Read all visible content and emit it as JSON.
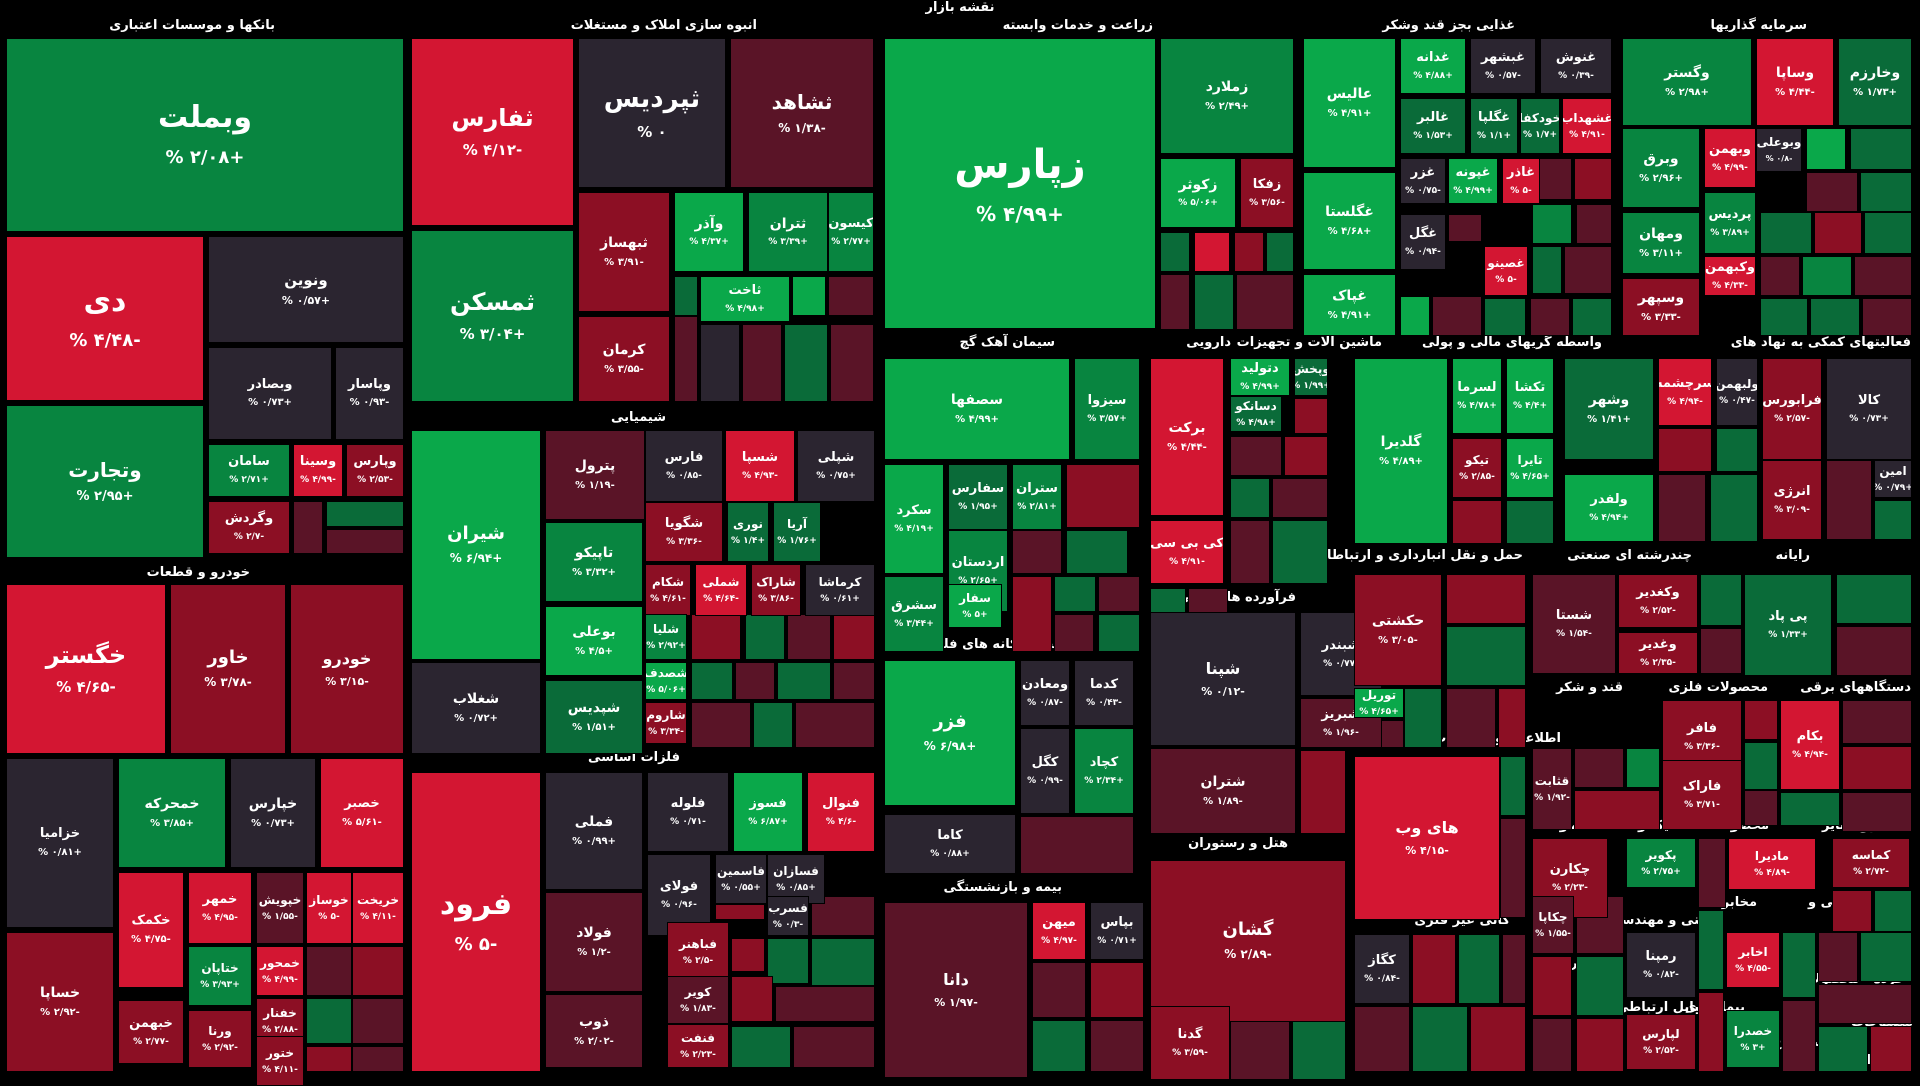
{
  "title": "نقشه بازار",
  "colors": {
    "bg": "#000000",
    "gain_strong": "#0aa84a",
    "gain": "#088540",
    "gain_mid": "#0a6b39",
    "neutral": "#2b2530",
    "loss_mid": "#5a1427",
    "loss": "#8c0f24",
    "loss_strong": "#d31632"
  },
  "sectors": [
    {
      "label": "بانکها و موسسات اعتباری"
    },
    {
      "label": "انبوه سازی املاک و مستغلات"
    },
    {
      "label": "زراعت و خدمات وابسته"
    },
    {
      "label": "غذایی بجز قند وشکر"
    },
    {
      "label": "سرمایه گذاریها"
    },
    {
      "label": "خودرو و قطعات"
    },
    {
      "label": "شیمیایی"
    },
    {
      "label": "فلزات اساسی"
    },
    {
      "label": "سیمان آهک گچ"
    },
    {
      "label": "دارویی"
    },
    {
      "label": "ماشین آلات و تجهیزات"
    },
    {
      "label": "واسطه گریهای مالی و پولی"
    },
    {
      "label": "فعالیتهای کمکی به نهاد های"
    },
    {
      "label": "فرآورده های نفتی"
    },
    {
      "label": "حمل و نقل انبارداری و ارتباطات"
    },
    {
      "label": "چندرشته ای صنعتی"
    },
    {
      "label": "رایانه"
    },
    {
      "label": "استخراج کانه های فلزی"
    },
    {
      "label": "قند و شکر"
    },
    {
      "label": "محصولات فلزی"
    },
    {
      "label": "دستگاههای برقی"
    },
    {
      "label": "اطلاعات و ارتباطات"
    },
    {
      "label": "استخراج سایر"
    },
    {
      "label": "هتل و رستوران"
    },
    {
      "label": "بیمه و بازنشستگی"
    },
    {
      "label": "لاستیک و"
    },
    {
      "label": "محصولات"
    },
    {
      "label": "محصولات"
    },
    {
      "label": "کانی غیر فلزی"
    },
    {
      "label": "فنی و مهندسی"
    },
    {
      "label": "مخابرات"
    },
    {
      "label": "کاشی و"
    },
    {
      "label": "سایر"
    },
    {
      "label": "عرضه"
    },
    {
      "label": "محصولات"
    },
    {
      "label": "خرده"
    },
    {
      "label": "وسایل ارتباطی"
    },
    {
      "label": "پیمانکاری"
    },
    {
      "label": "منسوجات"
    },
    {
      "label": "استخراج"
    },
    {
      "label": "استخراج ن"
    }
  ],
  "tiles": [
    {
      "symbol": "وبملت",
      "change": "+۲/۰۸ %",
      "color": "gain"
    },
    {
      "symbol": "دی",
      "change": "-۴/۴۸ %",
      "color": "loss_strong"
    },
    {
      "symbol": "ونوین",
      "change": "+۰/۵۷ %",
      "color": "neutral"
    },
    {
      "symbol": "وبصادر",
      "change": "+۰/۷۳ %",
      "color": "neutral"
    },
    {
      "symbol": "وپاسار",
      "change": "-۰/۹۳ %",
      "color": "neutral"
    },
    {
      "symbol": "وتجارت",
      "change": "+۲/۹۵ %",
      "color": "gain"
    },
    {
      "symbol": "سامان",
      "change": "+۲/۷۱ %",
      "color": "gain"
    },
    {
      "symbol": "وسینا",
      "change": "-۴/۹۹ %",
      "color": "loss_strong"
    },
    {
      "symbol": "وپارس",
      "change": "-۲/۵۳ %",
      "color": "loss"
    },
    {
      "symbol": "وگردش",
      "change": "-۲/۷ %",
      "color": "loss"
    },
    {
      "symbol": "ثفارس",
      "change": "-۴/۱۲ %",
      "color": "loss_strong"
    },
    {
      "symbol": "ثپردیس",
      "change": "۰ %",
      "color": "neutral"
    },
    {
      "symbol": "ثشاهد",
      "change": "-۱/۳۸ %",
      "color": "loss_mid"
    },
    {
      "symbol": "ثمسکن",
      "change": "+۳/۰۴ %",
      "color": "gain"
    },
    {
      "symbol": "ثبهساز",
      "change": "-۳/۹۱ %",
      "color": "loss"
    },
    {
      "symbol": "وآذر",
      "change": "+۴/۳۷ %",
      "color": "gain_strong"
    },
    {
      "symbol": "ثتران",
      "change": "+۳/۳۹ %",
      "color": "gain"
    },
    {
      "symbol": "کیسون",
      "change": "+۲/۷۷ %",
      "color": "gain"
    },
    {
      "symbol": "ثاخت",
      "change": "+۴/۹۸ %",
      "color": "gain_strong"
    },
    {
      "symbol": "کرمان",
      "change": "-۳/۵۵ %",
      "color": "loss"
    },
    {
      "symbol": "زپارس",
      "change": "+۴/۹۹ %",
      "color": "gain_strong"
    },
    {
      "symbol": "زملارد",
      "change": "+۲/۴۹ %",
      "color": "gain"
    },
    {
      "symbol": "زکوثر",
      "change": "+۵/۰۶ %",
      "color": "gain_strong"
    },
    {
      "symbol": "زفکا",
      "change": "-۳/۵۶ %",
      "color": "loss"
    },
    {
      "symbol": "عالیس",
      "change": "+۴/۹۱ %",
      "color": "gain_strong"
    },
    {
      "symbol": "غدانه",
      "change": "+۴/۸۸ %",
      "color": "gain_strong"
    },
    {
      "symbol": "غبشهر",
      "change": "-۰/۵۷ %",
      "color": "neutral"
    },
    {
      "symbol": "غنوش",
      "change": "-۰/۳۹ %",
      "color": "neutral"
    },
    {
      "symbol": "غالبر",
      "change": "+۱/۵۳ %",
      "color": "gain_mid"
    },
    {
      "symbol": "غگلپا",
      "change": "+۱/۱ %",
      "color": "gain_mid"
    },
    {
      "symbol": "خودکفا",
      "change": "+۱/۷ %",
      "color": "gain_mid"
    },
    {
      "symbol": "غشهداب",
      "change": "-۴/۹۱ %",
      "color": "loss_strong"
    },
    {
      "symbol": "غگلستا",
      "change": "+۴/۶۸ %",
      "color": "gain_strong"
    },
    {
      "symbol": "غزر",
      "change": "-۰/۷۵ %",
      "color": "neutral"
    },
    {
      "symbol": "غپونه",
      "change": "+۴/۹۹ %",
      "color": "gain_strong"
    },
    {
      "symbol": "غاذر",
      "change": "-۵ %",
      "color": "loss_strong"
    },
    {
      "symbol": "غگل",
      "change": "-۰/۹۴ %",
      "color": "neutral"
    },
    {
      "symbol": "غصینو",
      "change": "-۵ %",
      "color": "loss_strong"
    },
    {
      "symbol": "غپاک",
      "change": "+۴/۹۱ %",
      "color": "gain_strong"
    },
    {
      "symbol": "وگستر",
      "change": "+۲/۹۸ %",
      "color": "gain"
    },
    {
      "symbol": "وساپا",
      "change": "-۴/۴۴ %",
      "color": "loss_strong"
    },
    {
      "symbol": "وخارزم",
      "change": "+۱/۷۳ %",
      "color": "gain_mid"
    },
    {
      "symbol": "وبوعلی",
      "change": "-۰/۸ %",
      "color": "neutral"
    },
    {
      "symbol": "وبهمن",
      "change": "-۴/۹۹ %",
      "color": "loss_strong"
    },
    {
      "symbol": "وبرق",
      "change": "+۲/۹۶ %",
      "color": "gain"
    },
    {
      "symbol": "پردیس",
      "change": "+۳/۸۹ %",
      "color": "gain"
    },
    {
      "symbol": "ومهان",
      "change": "+۳/۱۱ %",
      "color": "gain"
    },
    {
      "symbol": "وکبهمن",
      "change": "-۴/۳۳ %",
      "color": "loss_strong"
    },
    {
      "symbol": "وسپهر",
      "change": "-۳/۳۳ %",
      "color": "loss"
    },
    {
      "symbol": "خگستر",
      "change": "-۴/۶۵ %",
      "color": "loss_strong"
    },
    {
      "symbol": "خاور",
      "change": "-۳/۷۸ %",
      "color": "loss"
    },
    {
      "symbol": "خودرو",
      "change": "-۳/۱۵ %",
      "color": "loss"
    },
    {
      "symbol": "خزامیا",
      "change": "+۰/۸۱ %",
      "color": "neutral"
    },
    {
      "symbol": "خمحرکه",
      "change": "+۳/۸۵ %",
      "color": "gain"
    },
    {
      "symbol": "خپارس",
      "change": "+۰/۷۳ %",
      "color": "neutral"
    },
    {
      "symbol": "خصبر",
      "change": "-۵/۶۱ %",
      "color": "loss_strong"
    },
    {
      "symbol": "خکمک",
      "change": "-۴/۷۵ %",
      "color": "loss_strong"
    },
    {
      "symbol": "خمهر",
      "change": "-۴/۹۵ %",
      "color": "loss_strong"
    },
    {
      "symbol": "خپویش",
      "change": "-۱/۵۵ %",
      "color": "loss_mid"
    },
    {
      "symbol": "خوساز",
      "change": "-۵ %",
      "color": "loss_strong"
    },
    {
      "symbol": "خریخت",
      "change": "-۴/۱۱ %",
      "color": "loss_strong"
    },
    {
      "symbol": "خساپا",
      "change": "-۲/۹۲ %",
      "color": "loss"
    },
    {
      "symbol": "ختاپان",
      "change": "+۳/۹۳ %",
      "color": "gain"
    },
    {
      "symbol": "خمحور",
      "change": "-۴/۹۹ %",
      "color": "loss_strong"
    },
    {
      "symbol": "خفنار",
      "change": "-۲/۸۸ %",
      "color": "loss"
    },
    {
      "symbol": "خبهمن",
      "change": "-۲/۷۷ %",
      "color": "loss"
    },
    {
      "symbol": "ورنا",
      "change": "-۲/۹۲ %",
      "color": "loss"
    },
    {
      "symbol": "ختور",
      "change": "-۴/۱۱ %",
      "color": "loss"
    },
    {
      "symbol": "شیران",
      "change": "+۶/۹۴ %",
      "color": "gain_strong"
    },
    {
      "symbol": "شغلاب",
      "change": "+۰/۷۲ %",
      "color": "neutral"
    },
    {
      "symbol": "پترول",
      "change": "-۱/۱۹ %",
      "color": "loss_mid"
    },
    {
      "symbol": "فارس",
      "change": "-۰/۸۵ %",
      "color": "neutral"
    },
    {
      "symbol": "شسپا",
      "change": "-۴/۹۳ %",
      "color": "loss_strong"
    },
    {
      "symbol": "شپلی",
      "change": "+۰/۷۵ %",
      "color": "neutral"
    },
    {
      "symbol": "تاپیکو",
      "change": "+۳/۳۲ %",
      "color": "gain"
    },
    {
      "symbol": "شگویا",
      "change": "-۳/۳۶ %",
      "color": "loss"
    },
    {
      "symbol": "نوری",
      "change": "+۱/۴ %",
      "color": "gain_mid"
    },
    {
      "symbol": "آریا",
      "change": "+۱/۷۶ %",
      "color": "gain_mid"
    },
    {
      "symbol": "شکام",
      "change": "-۴/۶۱ %",
      "color": "loss"
    },
    {
      "symbol": "شملی",
      "change": "-۴/۶۴ %",
      "color": "loss_strong"
    },
    {
      "symbol": "شاراک",
      "change": "-۳/۸۶ %",
      "color": "loss"
    },
    {
      "symbol": "کرماشا",
      "change": "+۰/۶۱ %",
      "color": "neutral"
    },
    {
      "symbol": "بوعلی",
      "change": "+۴/۵ %",
      "color": "gain_strong"
    },
    {
      "symbol": "شلیا",
      "change": "+۲/۹۲ %",
      "color": "gain"
    },
    {
      "symbol": "شصدف",
      "change": "+۵/۰۶ %",
      "color": "gain_strong"
    },
    {
      "symbol": "شپدیس",
      "change": "+۱/۵۱ %",
      "color": "gain_mid"
    },
    {
      "symbol": "شاروم",
      "change": "-۳/۳۴ %",
      "color": "loss"
    },
    {
      "symbol": "فرود",
      "change": "-۵ %",
      "color": "loss_strong"
    },
    {
      "symbol": "فملی",
      "change": "+۰/۹۹ %",
      "color": "neutral"
    },
    {
      "symbol": "فلوله",
      "change": "-۰/۷۱ %",
      "color": "neutral"
    },
    {
      "symbol": "فسوز",
      "change": "+۶/۸۷ %",
      "color": "gain_strong"
    },
    {
      "symbol": "فنوال",
      "change": "-۴/۶ %",
      "color": "loss_strong"
    },
    {
      "symbol": "فولای",
      "change": "-۰/۹۶ %",
      "color": "neutral"
    },
    {
      "symbol": "فاسمین",
      "change": "+۰/۵۵ %",
      "color": "neutral"
    },
    {
      "symbol": "فسازان",
      "change": "+۰/۸۵ %",
      "color": "neutral"
    },
    {
      "symbol": "فولاد",
      "change": "-۱/۲ %",
      "color": "loss_mid"
    },
    {
      "symbol": "فسرب",
      "change": "-۰/۳ %",
      "color": "neutral"
    },
    {
      "symbol": "فباهنر",
      "change": "-۲/۵ %",
      "color": "loss"
    },
    {
      "symbol": "ذوب",
      "change": "-۲/۰۲ %",
      "color": "loss_mid"
    },
    {
      "symbol": "کویر",
      "change": "-۱/۸۳ %",
      "color": "loss_mid"
    },
    {
      "symbol": "فنفت",
      "change": "-۲/۲۳ %",
      "color": "loss"
    },
    {
      "symbol": "سصفها",
      "change": "+۴/۹۹ %",
      "color": "gain_strong"
    },
    {
      "symbol": "سیزوا",
      "change": "+۳/۵۷ %",
      "color": "gain"
    },
    {
      "symbol": "سکرد",
      "change": "+۴/۱۹ %",
      "color": "gain_strong"
    },
    {
      "symbol": "سفارس",
      "change": "+۱/۹۵ %",
      "color": "gain_mid"
    },
    {
      "symbol": "ستران",
      "change": "+۲/۸۱ %",
      "color": "gain"
    },
    {
      "symbol": "اردستان",
      "change": "+۲/۶۵ %",
      "color": "gain"
    },
    {
      "symbol": "سشرق",
      "change": "+۳/۴۴ %",
      "color": "gain"
    },
    {
      "symbol": "سفار",
      "change": "+۵ %",
      "color": "gain_strong"
    },
    {
      "symbol": "برکت",
      "change": "-۴/۴۴ %",
      "color": "loss_strong"
    },
    {
      "symbol": "دتولید",
      "change": "+۴/۹۹ %",
      "color": "gain_strong"
    },
    {
      "symbol": "وپخش",
      "change": "+۱/۹۹ %",
      "color": "gain_mid"
    },
    {
      "symbol": "دسانکو",
      "change": "+۴/۹۸ %",
      "color": "gain_mid"
    },
    {
      "symbol": "کی بی سی",
      "change": "-۴/۹۱ %",
      "color": "loss_strong"
    },
    {
      "symbol": "گلدیرا",
      "change": "+۴/۸۹ %",
      "color": "gain_strong"
    },
    {
      "symbol": "لسرما",
      "change": "+۴/۷۸ %",
      "color": "gain_strong"
    },
    {
      "symbol": "تکشا",
      "change": "+۴/۴ %",
      "color": "gain_strong"
    },
    {
      "symbol": "تیکو",
      "change": "-۲/۸۵ %",
      "color": "loss"
    },
    {
      "symbol": "تایرا",
      "change": "+۴/۶۵ %",
      "color": "gain_strong"
    },
    {
      "symbol": "وشهر",
      "change": "+۱/۴۱ %",
      "color": "gain_mid"
    },
    {
      "symbol": "سرچشمه",
      "change": "-۴/۹۴ %",
      "color": "loss_strong"
    },
    {
      "symbol": "ولبهمن",
      "change": "-۰/۴۷ %",
      "color": "neutral"
    },
    {
      "symbol": "ولفدر",
      "change": "+۴/۹۴ %",
      "color": "gain_strong"
    },
    {
      "symbol": "فرابورس",
      "change": "-۲/۵۷ %",
      "color": "loss"
    },
    {
      "symbol": "کالا",
      "change": "+۰/۷۳ %",
      "color": "neutral"
    },
    {
      "symbol": "امین",
      "change": "+۰/۷۹ %",
      "color": "neutral"
    },
    {
      "symbol": "انرژی",
      "change": "-۳/۰۹ %",
      "color": "loss"
    },
    {
      "symbol": "شپنا",
      "change": "-۰/۱۲ %",
      "color": "neutral"
    },
    {
      "symbol": "شبندر",
      "change": "-۰/۷۷ %",
      "color": "neutral"
    },
    {
      "symbol": "شبریز",
      "change": "-۱/۹۶ %",
      "color": "loss_mid"
    },
    {
      "symbol": "شتران",
      "change": "-۱/۸۹ %",
      "color": "loss_mid"
    },
    {
      "symbol": "حکشتی",
      "change": "-۳/۰۵ %",
      "color": "loss"
    },
    {
      "symbol": "توریل",
      "change": "+۴/۶۵ %",
      "color": "gain_strong"
    },
    {
      "symbol": "شستا",
      "change": "-۱/۵۴ %",
      "color": "loss_mid"
    },
    {
      "symbol": "وکغدیر",
      "change": "-۲/۵۲ %",
      "color": "loss"
    },
    {
      "symbol": "وغدیر",
      "change": "-۲/۳۵ %",
      "color": "loss"
    },
    {
      "symbol": "پی پاد",
      "change": "+۱/۳۳ %",
      "color": "gain_mid"
    },
    {
      "symbol": "فزر",
      "change": "+۶/۹۸ %",
      "color": "gain_strong"
    },
    {
      "symbol": "ومعادن",
      "change": "-۰/۸۷ %",
      "color": "neutral"
    },
    {
      "symbol": "کدما",
      "change": "-۰/۴۳ %",
      "color": "neutral"
    },
    {
      "symbol": "کگل",
      "change": "-۰/۹۹ %",
      "color": "neutral"
    },
    {
      "symbol": "کچاد",
      "change": "+۲/۳۴ %",
      "color": "gain"
    },
    {
      "symbol": "کاما",
      "change": "+۰/۸۸ %",
      "color": "neutral"
    },
    {
      "symbol": "قثابت",
      "change": "-۱/۹۲ %",
      "color": "loss_mid"
    },
    {
      "symbol": "فافر",
      "change": "-۳/۳۶ %",
      "color": "loss"
    },
    {
      "symbol": "فاراک",
      "change": "-۳/۷۱ %",
      "color": "loss"
    },
    {
      "symbol": "بکام",
      "change": "-۴/۹۴ %",
      "color": "loss_strong"
    },
    {
      "symbol": "های وب",
      "change": "-۴/۱۵ %",
      "color": "loss_strong"
    },
    {
      "symbol": "کماسه",
      "change": "-۲/۷۲ %",
      "color": "loss"
    },
    {
      "symbol": "گشان",
      "change": "-۲/۸۹ %",
      "color": "loss"
    },
    {
      "symbol": "گدنا",
      "change": "-۳/۵۹ %",
      "color": "loss"
    },
    {
      "symbol": "دانا",
      "change": "-۱/۹۷ %",
      "color": "loss_mid"
    },
    {
      "symbol": "میهن",
      "change": "-۴/۹۷ %",
      "color": "loss_strong"
    },
    {
      "symbol": "بپاس",
      "change": "+۰/۷۱ %",
      "color": "neutral"
    },
    {
      "symbol": "چکارن",
      "change": "-۲/۲۳ %",
      "color": "loss"
    },
    {
      "symbol": "پکویر",
      "change": "+۲/۷۵ %",
      "color": "gain"
    },
    {
      "symbol": "مادیرا",
      "change": "-۴/۸۹ %",
      "color": "loss_strong"
    },
    {
      "symbol": "چکاپا",
      "change": "-۱/۵۵ %",
      "color": "loss_mid"
    },
    {
      "symbol": "کگاز",
      "change": "-۰/۸۴ %",
      "color": "neutral"
    },
    {
      "symbol": "رمپنا",
      "change": "-۰/۸۲ %",
      "color": "neutral"
    },
    {
      "symbol": "اخابر",
      "change": "-۴/۵۵ %",
      "color": "loss_strong"
    },
    {
      "symbol": "لپارس",
      "change": "-۲/۵۲ %",
      "color": "loss"
    },
    {
      "symbol": "خصدرا",
      "change": "+۳ %",
      "color": "gain"
    }
  ]
}
